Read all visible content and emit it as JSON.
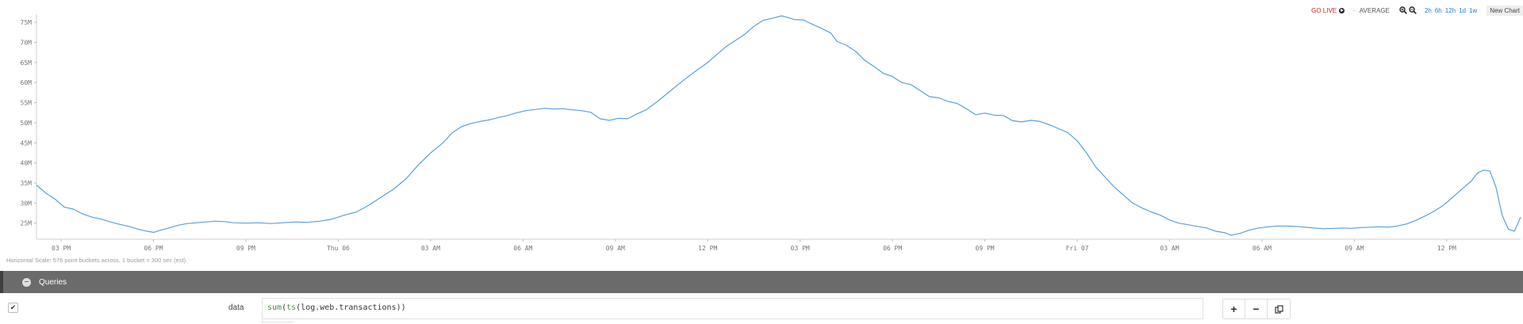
{
  "toolbar": {
    "go_live": "GO LIVE",
    "aggregation": "AVERAGE",
    "zoom_in_icon": "zoom-in-icon",
    "zoom_out_icon": "zoom-out-icon",
    "ranges": [
      "2h",
      "6h",
      "12h",
      "1d",
      "1w"
    ],
    "new_chart": "New Chart",
    "colors": {
      "go_live": "#c62828",
      "range_link": "#1e7bd6"
    }
  },
  "chart_data": {
    "type": "line",
    "title": "",
    "xlabel": "",
    "ylabel": "",
    "ylim": [
      21000000,
      77000000
    ],
    "y_ticks": [
      "25M",
      "30M",
      "35M",
      "40M",
      "45M",
      "50M",
      "55M",
      "60M",
      "65M",
      "70M",
      "75M"
    ],
    "x_ticks": [
      "03 PM",
      "06 PM",
      "09 PM",
      "Thu 06",
      "03 AM",
      "06 AM",
      "09 AM",
      "12 PM",
      "03 PM",
      "06 PM",
      "09 PM",
      "Fri 07",
      "03 AM",
      "06 AM",
      "09 AM",
      "12 PM"
    ],
    "x_range_hours": [
      -0.8,
      47.4
    ],
    "grid": false,
    "line_color": "#5aa0d8",
    "series": [
      {
        "points": [
          [
            -0.8,
            34.5
          ],
          [
            -0.5,
            32.5
          ],
          [
            -0.2,
            31
          ],
          [
            0.1,
            29
          ],
          [
            0.4,
            28.5
          ],
          [
            0.7,
            27.3
          ],
          [
            1.0,
            26.5
          ],
          [
            1.3,
            26
          ],
          [
            1.6,
            25.3
          ],
          [
            1.9,
            24.7
          ],
          [
            2.2,
            24.2
          ],
          [
            2.5,
            23.5
          ],
          [
            2.8,
            23.0
          ],
          [
            3.0,
            22.7
          ],
          [
            3.2,
            23.2
          ],
          [
            3.5,
            23.8
          ],
          [
            3.8,
            24.5
          ],
          [
            4.1,
            24.9
          ],
          [
            4.4,
            25.1
          ],
          [
            4.7,
            25.3
          ],
          [
            5.0,
            25.5
          ],
          [
            5.3,
            25.4
          ],
          [
            5.6,
            25.1
          ],
          [
            6.0,
            25.0
          ],
          [
            6.4,
            25.1
          ],
          [
            6.8,
            24.9
          ],
          [
            7.2,
            25.1
          ],
          [
            7.6,
            25.3
          ],
          [
            8.0,
            25.2
          ],
          [
            8.4,
            25.5
          ],
          [
            8.8,
            26.0
          ],
          [
            9.2,
            27.0
          ],
          [
            9.6,
            27.8
          ],
          [
            10.0,
            29.5
          ],
          [
            10.4,
            31.5
          ],
          [
            10.8,
            33.5
          ],
          [
            11.2,
            36
          ],
          [
            11.6,
            39.5
          ],
          [
            12.0,
            42.5
          ],
          [
            12.4,
            45
          ],
          [
            12.7,
            47.5
          ],
          [
            13.0,
            49
          ],
          [
            13.3,
            49.8
          ],
          [
            13.6,
            50.3
          ],
          [
            13.9,
            50.7
          ],
          [
            14.2,
            51.3
          ],
          [
            14.5,
            51.8
          ],
          [
            14.8,
            52.5
          ],
          [
            15.1,
            53.0
          ],
          [
            15.4,
            53.3
          ],
          [
            15.7,
            53.6
          ],
          [
            16.0,
            53.4
          ],
          [
            16.3,
            53.5
          ],
          [
            16.6,
            53.2
          ],
          [
            16.9,
            53.0
          ],
          [
            17.2,
            52.6
          ],
          [
            17.5,
            51.0
          ],
          [
            17.8,
            50.6
          ],
          [
            18.1,
            51.1
          ],
          [
            18.4,
            51.0
          ],
          [
            18.7,
            52.2
          ],
          [
            19.0,
            53.2
          ],
          [
            19.4,
            55.5
          ],
          [
            19.8,
            58.0
          ],
          [
            20.2,
            60.5
          ],
          [
            20.6,
            62.8
          ],
          [
            21.0,
            65.0
          ],
          [
            21.3,
            67.0
          ],
          [
            21.6,
            69.0
          ],
          [
            21.9,
            70.5
          ],
          [
            22.2,
            72.0
          ],
          [
            22.5,
            74.0
          ],
          [
            22.8,
            75.5
          ],
          [
            23.1,
            76.0
          ],
          [
            23.4,
            76.6
          ],
          [
            23.6,
            76.2
          ],
          [
            23.8,
            75.7
          ],
          [
            24.1,
            75.6
          ],
          [
            24.4,
            74.5
          ],
          [
            24.7,
            73.5
          ],
          [
            25.0,
            72.3
          ],
          [
            25.2,
            70.2
          ],
          [
            25.5,
            69.3
          ],
          [
            25.8,
            67.8
          ],
          [
            26.1,
            65.5
          ],
          [
            26.4,
            64.0
          ],
          [
            26.7,
            62.3
          ],
          [
            27.0,
            61.5
          ],
          [
            27.3,
            60.0
          ],
          [
            27.6,
            59.5
          ],
          [
            27.9,
            58.0
          ],
          [
            28.2,
            56.5
          ],
          [
            28.5,
            56.2
          ],
          [
            28.8,
            55.3
          ],
          [
            29.1,
            54.8
          ],
          [
            29.4,
            53.5
          ],
          [
            29.7,
            52.0
          ],
          [
            30.0,
            52.4
          ],
          [
            30.3,
            51.9
          ],
          [
            30.6,
            51.8
          ],
          [
            30.9,
            50.5
          ],
          [
            31.2,
            50.2
          ],
          [
            31.5,
            50.6
          ],
          [
            31.8,
            50.3
          ],
          [
            32.1,
            49.5
          ],
          [
            32.4,
            48.5
          ],
          [
            32.7,
            47.5
          ],
          [
            33.0,
            45.5
          ],
          [
            33.3,
            42.5
          ],
          [
            33.6,
            39.0
          ],
          [
            33.9,
            36.5
          ],
          [
            34.2,
            34.0
          ],
          [
            34.5,
            32.0
          ],
          [
            34.8,
            30.0
          ],
          [
            35.1,
            28.8
          ],
          [
            35.4,
            27.8
          ],
          [
            35.7,
            27.0
          ],
          [
            36.0,
            25.8
          ],
          [
            36.3,
            25.0
          ],
          [
            36.6,
            24.6
          ],
          [
            36.9,
            24.2
          ],
          [
            37.2,
            23.8
          ],
          [
            37.5,
            23.0
          ],
          [
            37.8,
            22.6
          ],
          [
            38.0,
            22.0
          ],
          [
            38.3,
            22.5
          ],
          [
            38.6,
            23.3
          ],
          [
            38.9,
            23.8
          ],
          [
            39.2,
            24.1
          ],
          [
            39.5,
            24.3
          ],
          [
            39.8,
            24.3
          ],
          [
            40.1,
            24.2
          ],
          [
            40.4,
            24.0
          ],
          [
            40.7,
            23.8
          ],
          [
            41.0,
            23.6
          ],
          [
            41.3,
            23.7
          ],
          [
            41.6,
            23.8
          ],
          [
            41.9,
            23.7
          ],
          [
            42.2,
            23.9
          ],
          [
            42.5,
            24.0
          ],
          [
            42.8,
            24.1
          ],
          [
            43.1,
            24.0
          ],
          [
            43.4,
            24.3
          ],
          [
            43.7,
            24.8
          ],
          [
            44.0,
            25.7
          ],
          [
            44.3,
            26.8
          ],
          [
            44.6,
            28.0
          ],
          [
            44.9,
            29.5
          ],
          [
            45.2,
            31.5
          ],
          [
            45.5,
            33.5
          ],
          [
            45.8,
            35.5
          ],
          [
            46.0,
            37.5
          ],
          [
            46.2,
            38.2
          ],
          [
            46.4,
            38.0
          ],
          [
            46.6,
            34.0
          ],
          [
            46.8,
            27.0
          ],
          [
            47.0,
            23.5
          ],
          [
            47.2,
            23.0
          ],
          [
            47.4,
            26.5
          ]
        ]
      }
    ]
  },
  "h_scale_note": "Horizontal Scale: 576 point buckets across, 1 bucket = 300 sec (est)",
  "queries": {
    "section_title": "Queries",
    "rows": [
      {
        "enabled": true,
        "name": "data",
        "expr_fn": "sum",
        "expr_ts": "ts",
        "expr_arg": "log.web.transactions",
        "add_label": "+",
        "remove_label": "−",
        "copy_icon": "copy-icon"
      }
    ],
    "colors": {
      "bar_bg": "#6b6b6b",
      "fn_color": "#4f8a4f"
    }
  }
}
